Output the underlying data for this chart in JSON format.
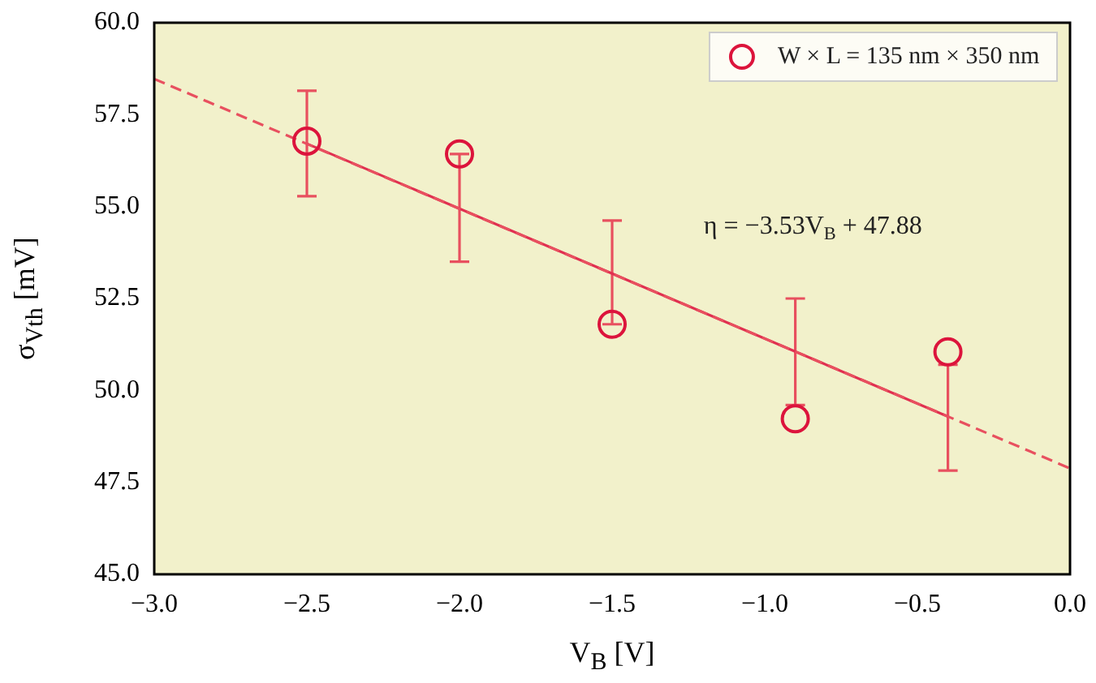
{
  "chart_data": {
    "type": "scatter",
    "xlabel": "V$_{B}$ [V]",
    "ylabel": "σ$_{Vth}$ [mV]",
    "annotations": [
      "η = −3.53V$_{B}$ + 47.88"
    ],
    "x": [
      -2.5,
      -2,
      -1.5,
      -0.9,
      -0.4
    ],
    "xlim": [
      -3,
      0
    ],
    "xticks": [
      {
        "value": -3,
        "label": "−3.0"
      },
      {
        "value": -2.5,
        "label": "−2.5"
      },
      {
        "value": -2,
        "label": "−2.0"
      },
      {
        "value": -1.5,
        "label": "−1.5"
      },
      {
        "value": -1,
        "label": "−1.0"
      },
      {
        "value": -0.5,
        "label": "−0.5"
      },
      {
        "value": 0,
        "label": "0.0"
      }
    ],
    "ylim": [
      45,
      60
    ],
    "yticks": [
      {
        "value": 45,
        "label": "45.0"
      },
      {
        "value": 47.5,
        "label": "47.5"
      },
      {
        "value": 50,
        "label": "50.0"
      },
      {
        "value": 52.5,
        "label": "52.5"
      },
      {
        "value": 55,
        "label": "55.0"
      },
      {
        "value": 57.5,
        "label": "57.5"
      },
      {
        "value": 60,
        "label": "60.0"
      }
    ],
    "grid": false,
    "legend": "top right",
    "marker": "circle",
    "series": [
      {
        "name": "W × L = 135 nm × 350 nm",
        "color": "#dc143c",
        "values": [
          56.78,
          56.43,
          51.8,
          49.23,
          51.05
        ],
        "errors": [
          [
            55.28,
            58.15
          ],
          [
            53.5,
            56.43
          ],
          [
            51.8,
            54.62
          ],
          [
            49.6,
            52.5
          ],
          [
            47.82,
            50.7
          ]
        ]
      },
      {
        "type": "line",
        "color": "#e8505f",
        "x": [
          -3,
          0
        ],
        "values": [
          58.47,
          47.88
        ],
        "line_style": "dashed",
        "marker": "none"
      },
      {
        "type": "line",
        "color": "#e03050",
        "x": [
          -2.5,
          -0.4
        ],
        "values": [
          56.71,
          49.29
        ],
        "line_style": "solid",
        "marker": "none"
      }
    ]
  }
}
